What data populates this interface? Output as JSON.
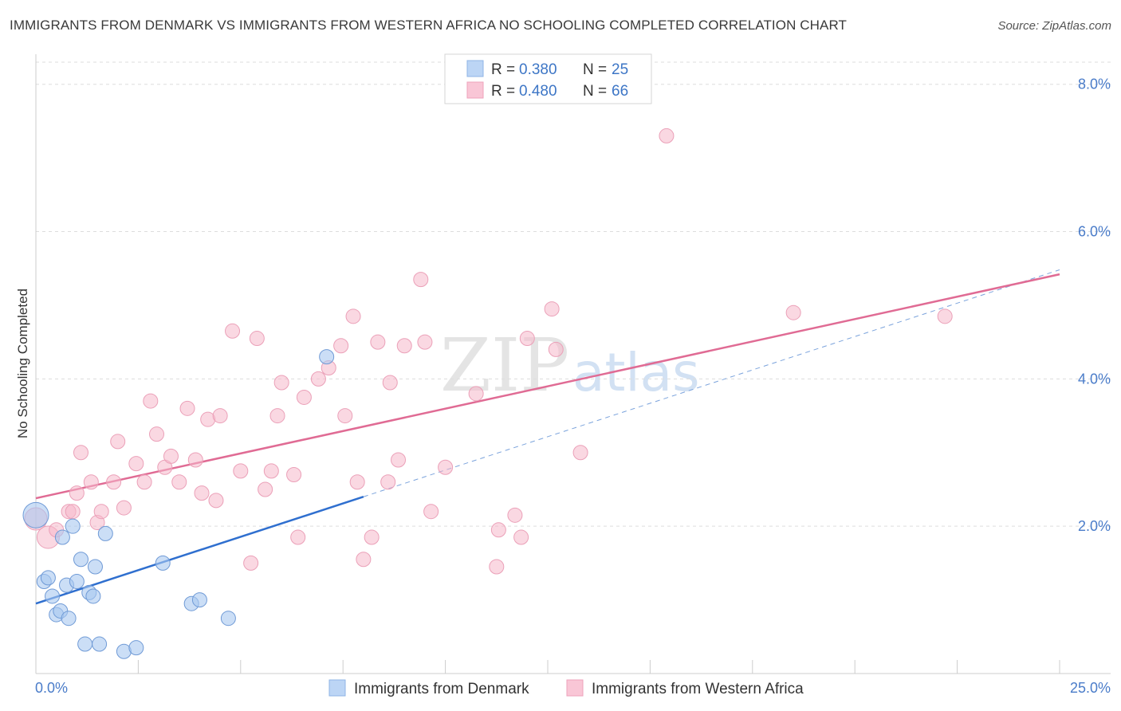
{
  "title": "IMMIGRANTS FROM DENMARK VS IMMIGRANTS FROM WESTERN AFRICA NO SCHOOLING COMPLETED CORRELATION CHART",
  "source": "Source: ZipAtlas.com",
  "watermark": {
    "zip": "ZIP",
    "atlas": "atlas"
  },
  "legend_top": [
    {
      "r_label": "R =",
      "r_value": "0.380",
      "n_label": "N =",
      "n_value": "25"
    },
    {
      "r_label": "R =",
      "r_value": "0.480",
      "n_label": "N =",
      "n_value": "66"
    }
  ],
  "chart_data": {
    "type": "scatter",
    "title": "IMMIGRANTS FROM DENMARK VS IMMIGRANTS FROM WESTERN AFRICA NO SCHOOLING COMPLETED CORRELATION CHART",
    "xlabel": "",
    "ylabel": "No Schooling Completed",
    "xlim": [
      0,
      25
    ],
    "ylim": [
      0,
      8.3
    ],
    "x_tick_labels": [
      "0.0%",
      "25.0%"
    ],
    "y_ticks": [
      2,
      4,
      6,
      8
    ],
    "y_tick_labels": [
      "2.0%",
      "4.0%",
      "6.0%",
      "8.0%"
    ],
    "grid": true,
    "legend_position": "bottom",
    "colors": {
      "denmark": "#a8c8f0",
      "denmark_line": "#2f6fcf",
      "waf": "#f5b8cb",
      "waf_line": "#e06b94"
    },
    "series": [
      {
        "name": "Immigrants from Denmark",
        "R": 0.38,
        "N": 25,
        "trend": {
          "x0": 0,
          "y0": 0.95,
          "x1": 8,
          "y1": 2.4,
          "dash_to_x": 25
        },
        "points": [
          [
            0.0,
            2.15
          ],
          [
            0.2,
            1.25
          ],
          [
            0.3,
            1.3
          ],
          [
            0.4,
            1.05
          ],
          [
            0.5,
            0.8
          ],
          [
            0.6,
            0.85
          ],
          [
            0.65,
            1.85
          ],
          [
            0.75,
            1.2
          ],
          [
            0.8,
            0.75
          ],
          [
            0.9,
            2.0
          ],
          [
            1.0,
            1.25
          ],
          [
            1.1,
            1.55
          ],
          [
            1.2,
            0.4
          ],
          [
            1.3,
            1.1
          ],
          [
            1.4,
            1.05
          ],
          [
            1.45,
            1.45
          ],
          [
            1.55,
            0.4
          ],
          [
            1.7,
            1.9
          ],
          [
            2.15,
            0.3
          ],
          [
            2.45,
            0.35
          ],
          [
            3.1,
            1.5
          ],
          [
            3.8,
            0.95
          ],
          [
            4.0,
            1.0
          ],
          [
            4.7,
            0.75
          ],
          [
            7.1,
            4.3
          ]
        ]
      },
      {
        "name": "Immigrants from Western Africa",
        "R": 0.48,
        "N": 66,
        "trend": {
          "x0": 0,
          "y0": 2.38,
          "x1": 25,
          "y1": 5.42
        },
        "points": [
          [
            0.0,
            2.1
          ],
          [
            0.3,
            1.85
          ],
          [
            0.5,
            1.95
          ],
          [
            0.8,
            2.2
          ],
          [
            0.9,
            2.2
          ],
          [
            1.0,
            2.45
          ],
          [
            1.1,
            3.0
          ],
          [
            1.35,
            2.6
          ],
          [
            1.5,
            2.05
          ],
          [
            1.6,
            2.2
          ],
          [
            1.9,
            2.6
          ],
          [
            2.0,
            3.15
          ],
          [
            2.15,
            2.25
          ],
          [
            2.45,
            2.85
          ],
          [
            2.65,
            2.6
          ],
          [
            2.8,
            3.7
          ],
          [
            2.95,
            3.25
          ],
          [
            3.15,
            2.8
          ],
          [
            3.3,
            2.95
          ],
          [
            3.5,
            2.6
          ],
          [
            3.7,
            3.6
          ],
          [
            3.9,
            2.9
          ],
          [
            4.05,
            2.45
          ],
          [
            4.2,
            3.45
          ],
          [
            4.4,
            2.35
          ],
          [
            4.5,
            3.5
          ],
          [
            4.8,
            4.65
          ],
          [
            5.0,
            2.75
          ],
          [
            5.25,
            1.5
          ],
          [
            5.4,
            4.55
          ],
          [
            5.6,
            2.5
          ],
          [
            5.75,
            2.75
          ],
          [
            5.9,
            3.5
          ],
          [
            6.0,
            3.95
          ],
          [
            6.3,
            2.7
          ],
          [
            6.4,
            1.85
          ],
          [
            6.55,
            3.75
          ],
          [
            6.9,
            4.0
          ],
          [
            7.15,
            4.15
          ],
          [
            7.45,
            4.45
          ],
          [
            7.55,
            3.5
          ],
          [
            7.75,
            4.85
          ],
          [
            7.85,
            2.6
          ],
          [
            8.0,
            1.55
          ],
          [
            8.2,
            1.85
          ],
          [
            8.35,
            4.5
          ],
          [
            8.6,
            2.6
          ],
          [
            8.65,
            3.95
          ],
          [
            8.85,
            2.9
          ],
          [
            9.0,
            4.45
          ],
          [
            9.4,
            5.35
          ],
          [
            9.5,
            4.5
          ],
          [
            9.65,
            2.2
          ],
          [
            10.0,
            2.8
          ],
          [
            10.75,
            3.8
          ],
          [
            11.25,
            1.45
          ],
          [
            11.3,
            1.95
          ],
          [
            11.7,
            2.15
          ],
          [
            11.85,
            1.85
          ],
          [
            12.0,
            4.55
          ],
          [
            12.6,
            4.95
          ],
          [
            12.7,
            4.4
          ],
          [
            13.3,
            3.0
          ],
          [
            15.4,
            7.3
          ],
          [
            18.5,
            4.9
          ],
          [
            22.2,
            4.85
          ]
        ]
      }
    ]
  }
}
